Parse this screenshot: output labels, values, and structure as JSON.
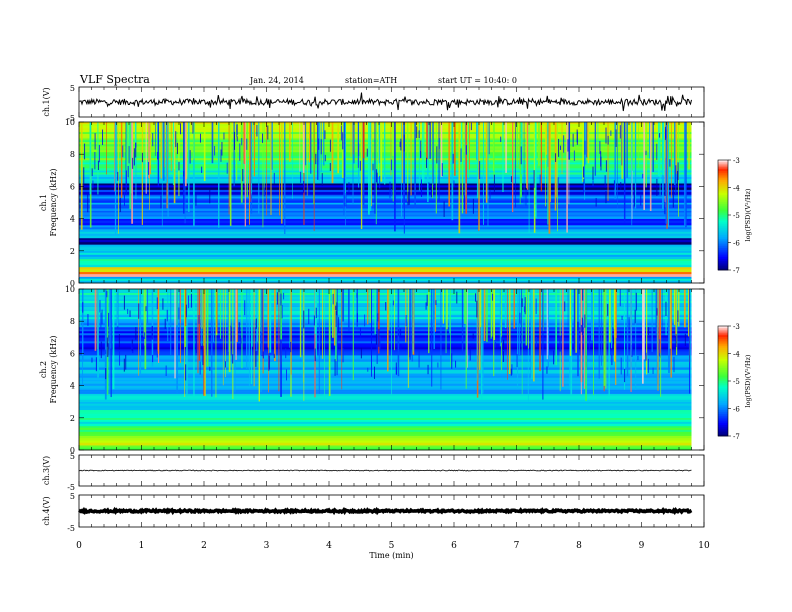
{
  "header": {
    "title": "VLF  Spectra",
    "date": "Jan. 24, 2014",
    "station": "station=ATH",
    "start": "start  UT  =   10:40: 0"
  },
  "chart_data": [
    {
      "type": "line",
      "id": "ch1",
      "ylabel": "ch.1(V)",
      "ylim": [
        -5,
        5
      ],
      "yticks": [
        "5",
        "-5"
      ],
      "baseline": 0,
      "amplitude": 1.0,
      "color": "#000000"
    },
    {
      "type": "heatmap",
      "id": "spec1",
      "ylabel_top": "ch.1",
      "ylabel": "Frequency  (kHz)",
      "ylim": [
        0,
        10
      ],
      "yticks": [
        "0",
        "2",
        "4",
        "6",
        "8",
        "10"
      ],
      "colorbar": {
        "label": "log(PSD)(V²/Hz)",
        "range": [
          -7,
          -3
        ],
        "ticks": [
          "-3",
          "-4",
          "-5",
          "-6",
          "-7"
        ]
      },
      "profile": {
        "bands_khz": [
          0,
          0.4,
          0.7,
          1.0,
          1.5,
          2.0,
          2.4,
          2.8,
          3.2,
          3.6,
          4.0,
          4.5,
          5.0,
          5.5,
          5.8,
          6.2,
          6.6,
          7.0,
          7.5,
          8.0,
          8.5,
          9.0,
          9.5,
          10.0
        ],
        "log_psd": [
          -5.6,
          -3.4,
          -4.2,
          -5.3,
          -5.6,
          -5.5,
          -6.8,
          -5.6,
          -5.8,
          -6.4,
          -5.9,
          -6.0,
          -6.1,
          -6.4,
          -6.8,
          -5.7,
          -5.2,
          -5.0,
          -4.8,
          -4.7,
          -4.6,
          -4.4,
          -4.2,
          -3.9
        ]
      }
    },
    {
      "type": "heatmap",
      "id": "spec2",
      "ylabel_top": "ch.2",
      "ylabel": "Frequency  (kHz)",
      "ylim": [
        0,
        10
      ],
      "yticks": [
        "0",
        "2",
        "4",
        "6",
        "8",
        "10"
      ],
      "colorbar": {
        "label": "log(PSD)(V²/Hz)",
        "range": [
          -7,
          -3
        ],
        "ticks": [
          "-3",
          "-4",
          "-5",
          "-6",
          "-7"
        ]
      },
      "profile": {
        "bands_khz": [
          0,
          0.3,
          0.6,
          1.0,
          1.5,
          2.0,
          2.5,
          3.0,
          3.5,
          4.0,
          4.5,
          5.0,
          5.5,
          6.0,
          6.5,
          7.0,
          7.5,
          8.0,
          8.5,
          9.0,
          9.5,
          10.0
        ],
        "log_psd": [
          -4.8,
          -4.2,
          -4.6,
          -4.9,
          -5.2,
          -5.0,
          -5.5,
          -5.6,
          -5.7,
          -5.8,
          -5.6,
          -5.8,
          -6.0,
          -6.5,
          -6.2,
          -6.3,
          -6.0,
          -5.5,
          -5.5,
          -5.4,
          -5.3,
          -5.4
        ]
      }
    },
    {
      "type": "line",
      "id": "ch3",
      "ylabel": "ch.3(V)",
      "ylim": [
        -5,
        5
      ],
      "yticks": [
        "5",
        "-5"
      ],
      "baseline": 0.0,
      "amplitude": 0.15,
      "color": "#000000"
    },
    {
      "type": "line",
      "id": "ch4",
      "ylabel": "ch.4(V)",
      "ylim": [
        -5,
        5
      ],
      "yticks": [
        "5",
        "-5"
      ],
      "baseline": 0.0,
      "amplitude": 0.3,
      "thick": true,
      "color": "#000000"
    }
  ],
  "xaxis": {
    "label": "Time  (min)",
    "range": [
      0,
      10
    ],
    "data_end": 9.8,
    "ticks": [
      "0",
      "1",
      "2",
      "3",
      "4",
      "5",
      "6",
      "7",
      "8",
      "9",
      "10"
    ]
  }
}
